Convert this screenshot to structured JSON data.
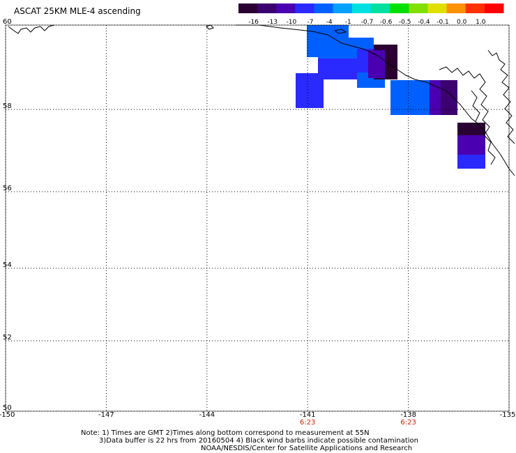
{
  "title": "ASCAT 25KM MLE-4 ascending",
  "colorbar": {
    "labels": [
      "-16",
      "-13",
      "-10",
      "-7",
      "-4",
      "-1",
      "-0.7",
      "-0.6",
      "-0.5",
      "-0.4",
      "-0.1",
      "0.0",
      "1.0"
    ],
    "colors": [
      "#2a0033",
      "#3c0070",
      "#4a00b0",
      "#2a2aff",
      "#0060ff",
      "#00a0ff",
      "#00e0e0",
      "#00e0a0",
      "#00e000",
      "#80e000",
      "#e0e000",
      "#ff9000",
      "#ff3000",
      "#ff0000"
    ]
  },
  "map": {
    "lat_range": [
      50,
      60
    ],
    "lon_range": [
      -150,
      -135
    ],
    "lat_ticks": [
      "60",
      "58",
      "56",
      "54",
      "52",
      "50"
    ],
    "lon_ticks": [
      "-150",
      "-147",
      "-144",
      "-141",
      "-138",
      "-135"
    ],
    "time_labels": [
      {
        "lon": -141,
        "text": "6:23"
      },
      {
        "lon": -138,
        "text": "6:23"
      }
    ]
  },
  "notes": [
    "Note: 1) Times are GMT 2)Times along bottom correspond to measurement at 55N",
    "3)Data buffer is 22 hrs from 20160504 4) Black wind barbs indicate possible contamination",
    "NOAA/NESDIS/Center for Satellite Applications and Research"
  ]
}
